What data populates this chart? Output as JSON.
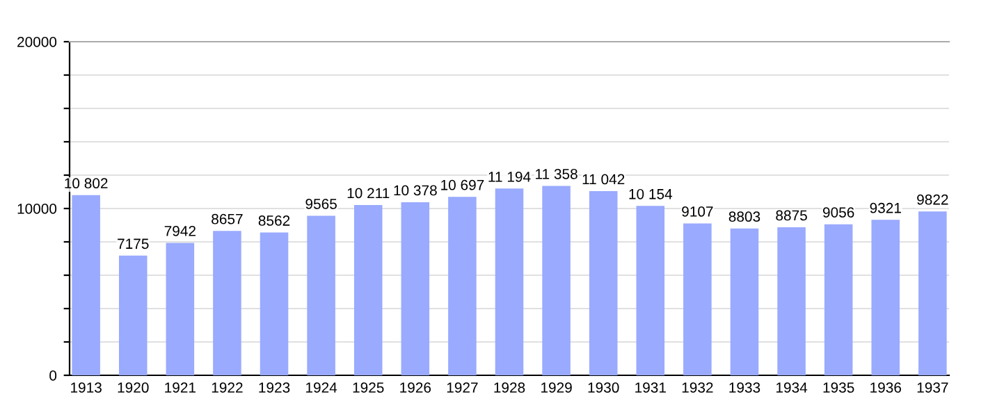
{
  "chart_data": {
    "type": "bar",
    "categories": [
      "1913",
      "1920",
      "1921",
      "1922",
      "1923",
      "1924",
      "1925",
      "1926",
      "1927",
      "1928",
      "1929",
      "1930",
      "1931",
      "1932",
      "1933",
      "1934",
      "1935",
      "1936",
      "1937"
    ],
    "values": [
      10802,
      7175,
      7942,
      8657,
      8562,
      9565,
      10211,
      10378,
      10697,
      11194,
      11358,
      11042,
      10154,
      9107,
      8803,
      8875,
      9056,
      9321,
      9822
    ],
    "value_labels": [
      "10 802",
      "7175",
      "7942",
      "8657",
      "8562",
      "9565",
      "10 211",
      "10 378",
      "10 697",
      "11 194",
      "11 358",
      "11 042",
      "10 154",
      "9107",
      "8803",
      "8875",
      "9056",
      "9321",
      "9822"
    ],
    "color": "#99aaff",
    "ylim": [
      0,
      20000
    ],
    "yticks": [
      0,
      {
        "value": 2000,
        "label": null
      },
      {
        "value": 4000,
        "label": null
      },
      {
        "value": 6000,
        "label": null
      },
      {
        "value": 8000,
        "label": null
      },
      10000,
      {
        "value": 12000,
        "label": null
      },
      {
        "value": 14000,
        "label": null
      },
      {
        "value": 16000,
        "label": null
      },
      {
        "value": 18000,
        "label": null
      },
      20000
    ],
    "grid": "y"
  }
}
